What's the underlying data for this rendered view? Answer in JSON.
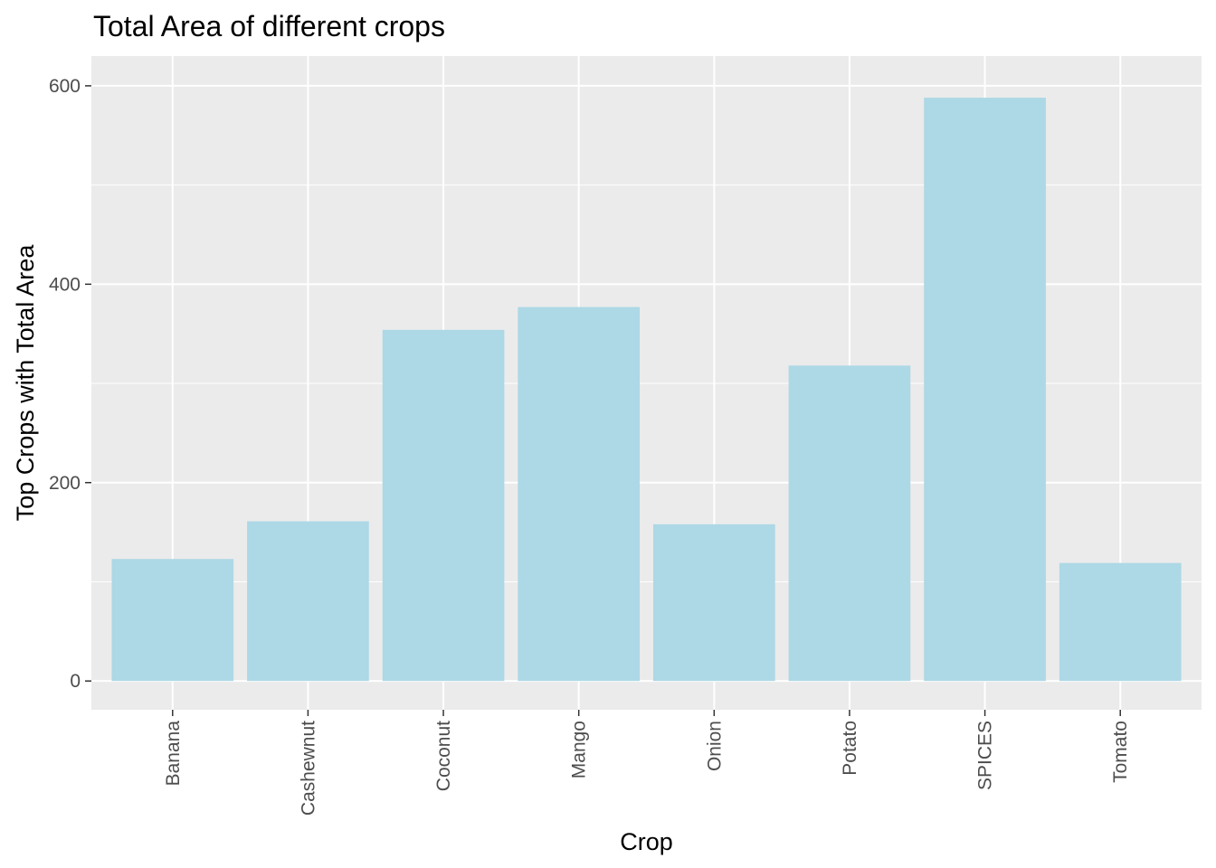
{
  "chart_data": {
    "type": "bar",
    "title": "Total Area of different crops",
    "xlabel": "Crop",
    "ylabel": "Top Crops with Total Area",
    "categories": [
      "Banana",
      "Cashewnut",
      "Coconut",
      "Mango",
      "Onion",
      "Potato",
      "SPICES",
      "Tomato"
    ],
    "values": [
      123,
      161,
      354,
      377,
      158,
      318,
      588,
      119
    ],
    "ylim": [
      -29,
      630
    ],
    "yticks": [
      0,
      200,
      400,
      600
    ],
    "grid": true,
    "legend": "none",
    "colors": {
      "bar": "#add8e6",
      "panel": "#ebebeb",
      "grid": "#ffffff",
      "tick": "#333333"
    }
  }
}
